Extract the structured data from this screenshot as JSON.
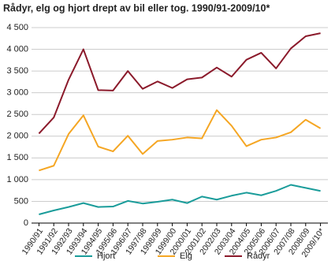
{
  "chart_data": {
    "type": "line",
    "title": "Rådyr, elg og hjort drept av bil eller tog. 1990/91-2009/10*",
    "categories": [
      "1990/91",
      "1991/92",
      "1992/93",
      "1993/94",
      "1994/95",
      "1995/96",
      "1996/97",
      "1997/98",
      "1998/99",
      "1999/00",
      "2000/01",
      "2001/02",
      "2002/03",
      "2003/04",
      "2004/05",
      "2005/06",
      "2006/07",
      "2007/08",
      "2008/09",
      "2009/10*"
    ],
    "series": [
      {
        "name": "Hjort",
        "color": "#1a9c9a",
        "values": [
          200,
          290,
          370,
          460,
          370,
          380,
          510,
          450,
          490,
          540,
          460,
          610,
          540,
          630,
          700,
          640,
          740,
          880,
          810,
          740
        ]
      },
      {
        "name": "Elg",
        "color": "#f5a623",
        "values": [
          1210,
          1320,
          2050,
          2480,
          1760,
          1650,
          2010,
          1590,
          1890,
          1920,
          1970,
          1950,
          2600,
          2240,
          1770,
          1920,
          1970,
          2090,
          2380,
          2180
        ]
      },
      {
        "name": "Rådyr",
        "color": "#8b1a2b",
        "values": [
          2060,
          2430,
          3300,
          4000,
          3060,
          3050,
          3500,
          3090,
          3260,
          3110,
          3310,
          3350,
          3580,
          3370,
          3760,
          3920,
          3560,
          4020,
          4300,
          4370
        ]
      }
    ],
    "ylim": [
      0,
      4500
    ],
    "yticks": [
      0,
      500,
      {
        "value": 1000,
        "label": "1 000"
      },
      {
        "value": 1500,
        "label": "1 500"
      },
      {
        "value": 2000,
        "label": "2 000"
      },
      {
        "value": 2500,
        "label": "2 500"
      },
      {
        "value": 3000,
        "label": "3 000"
      },
      {
        "value": 3500,
        "label": "3 500"
      },
      {
        "value": 4000,
        "label": "4 000"
      },
      {
        "value": 4500,
        "label": "4 500"
      }
    ],
    "grid": true
  }
}
